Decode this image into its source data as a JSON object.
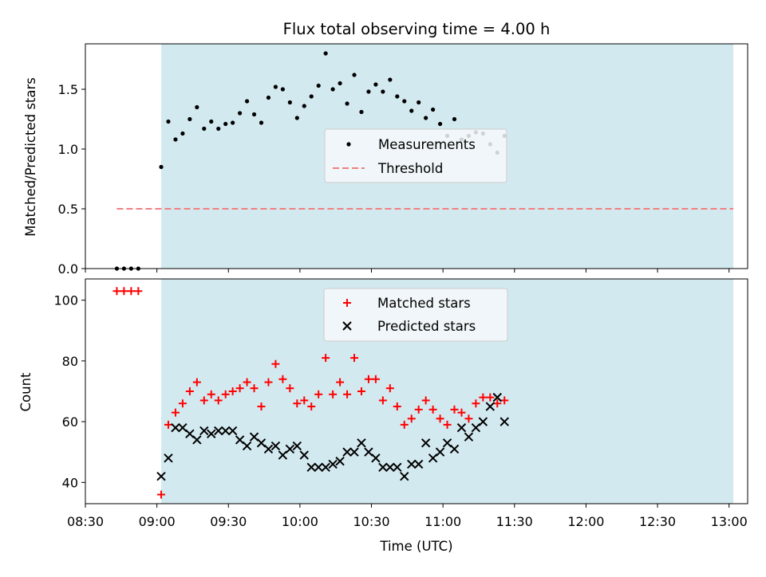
{
  "chart_data": {
    "type": "scatter",
    "title": "Flux total observing time = 4.00 h",
    "xlabel": "Time (UTC)",
    "x_tick_labels": [
      "08:30",
      "09:00",
      "09:30",
      "10:00",
      "10:30",
      "11:00",
      "11:30",
      "12:00",
      "12:30",
      "13:00"
    ],
    "x_tick_hours": [
      8.5,
      9.0,
      9.5,
      10.0,
      10.5,
      11.0,
      11.5,
      12.0,
      12.5,
      13.0
    ],
    "xlim_hours": [
      8.5,
      13.13
    ],
    "observing_window_hours": [
      9.03,
      13.03
    ],
    "colors": {
      "shade": "#d3e9f0",
      "matched": "#ff0000",
      "predicted": "#000000",
      "measurement": "#000000",
      "threshold": "#f08080"
    },
    "top_panel": {
      "ylabel": "Matched/Predicted stars",
      "ylim": [
        0,
        1.88
      ],
      "y_ticks": [
        0.0,
        0.5,
        1.0,
        1.5
      ],
      "y_tick_labels": [
        "0.0",
        "0.5",
        "1.0",
        "1.5"
      ],
      "legend": {
        "placement": "center",
        "measurements_label": "Measurements",
        "threshold_label": "Threshold"
      },
      "threshold": {
        "value": 0.5,
        "x_start_hours": 8.72,
        "x_end_hours": 13.03
      },
      "measurements": [
        {
          "t": 8.72,
          "v": 0.0
        },
        {
          "t": 8.77,
          "v": 0.0
        },
        {
          "t": 8.82,
          "v": 0.0
        },
        {
          "t": 8.87,
          "v": 0.0
        },
        {
          "t": 9.03,
          "v": 0.85
        },
        {
          "t": 9.08,
          "v": 1.23
        },
        {
          "t": 9.13,
          "v": 1.08
        },
        {
          "t": 9.18,
          "v": 1.13
        },
        {
          "t": 9.23,
          "v": 1.25
        },
        {
          "t": 9.28,
          "v": 1.35
        },
        {
          "t": 9.33,
          "v": 1.17
        },
        {
          "t": 9.38,
          "v": 1.23
        },
        {
          "t": 9.43,
          "v": 1.17
        },
        {
          "t": 9.48,
          "v": 1.21
        },
        {
          "t": 9.53,
          "v": 1.22
        },
        {
          "t": 9.58,
          "v": 1.3
        },
        {
          "t": 9.63,
          "v": 1.4
        },
        {
          "t": 9.68,
          "v": 1.29
        },
        {
          "t": 9.73,
          "v": 1.22
        },
        {
          "t": 9.78,
          "v": 1.43
        },
        {
          "t": 9.83,
          "v": 1.52
        },
        {
          "t": 9.88,
          "v": 1.5
        },
        {
          "t": 9.93,
          "v": 1.39
        },
        {
          "t": 9.98,
          "v": 1.26
        },
        {
          "t": 10.03,
          "v": 1.36
        },
        {
          "t": 10.08,
          "v": 1.44
        },
        {
          "t": 10.13,
          "v": 1.53
        },
        {
          "t": 10.18,
          "v": 1.8
        },
        {
          "t": 10.23,
          "v": 1.5
        },
        {
          "t": 10.28,
          "v": 1.55
        },
        {
          "t": 10.33,
          "v": 1.38
        },
        {
          "t": 10.38,
          "v": 1.62
        },
        {
          "t": 10.43,
          "v": 1.31
        },
        {
          "t": 10.48,
          "v": 1.48
        },
        {
          "t": 10.53,
          "v": 1.54
        },
        {
          "t": 10.58,
          "v": 1.48
        },
        {
          "t": 10.63,
          "v": 1.58
        },
        {
          "t": 10.68,
          "v": 1.44
        },
        {
          "t": 10.73,
          "v": 1.4
        },
        {
          "t": 10.78,
          "v": 1.32
        },
        {
          "t": 10.83,
          "v": 1.39
        },
        {
          "t": 10.88,
          "v": 1.26
        },
        {
          "t": 10.93,
          "v": 1.33
        },
        {
          "t": 10.98,
          "v": 1.21
        },
        {
          "t": 11.03,
          "v": 1.11
        },
        {
          "t": 11.08,
          "v": 1.25
        },
        {
          "t": 11.13,
          "v": 1.08
        },
        {
          "t": 11.18,
          "v": 1.11
        },
        {
          "t": 11.23,
          "v": 1.14
        },
        {
          "t": 11.28,
          "v": 1.13
        },
        {
          "t": 11.33,
          "v": 1.04
        },
        {
          "t": 11.38,
          "v": 0.97
        },
        {
          "t": 11.43,
          "v": 1.11
        }
      ]
    },
    "bottom_panel": {
      "ylabel": "Count",
      "ylim": [
        33,
        107
      ],
      "y_ticks": [
        40,
        60,
        80,
        100
      ],
      "y_tick_labels": [
        "40",
        "60",
        "80",
        "100"
      ],
      "legend": {
        "placement": "upper center",
        "matched_label": "Matched stars",
        "predicted_label": "Predicted stars"
      },
      "series": [
        {
          "name": "Matched stars",
          "marker": "plus",
          "points": [
            {
              "t": 8.72,
              "v": 103
            },
            {
              "t": 8.77,
              "v": 103
            },
            {
              "t": 8.82,
              "v": 103
            },
            {
              "t": 8.87,
              "v": 103
            },
            {
              "t": 9.03,
              "v": 36
            },
            {
              "t": 9.08,
              "v": 59
            },
            {
              "t": 9.13,
              "v": 63
            },
            {
              "t": 9.18,
              "v": 66
            },
            {
              "t": 9.23,
              "v": 70
            },
            {
              "t": 9.28,
              "v": 73
            },
            {
              "t": 9.33,
              "v": 67
            },
            {
              "t": 9.38,
              "v": 69
            },
            {
              "t": 9.43,
              "v": 67
            },
            {
              "t": 9.48,
              "v": 69
            },
            {
              "t": 9.53,
              "v": 70
            },
            {
              "t": 9.58,
              "v": 71
            },
            {
              "t": 9.63,
              "v": 73
            },
            {
              "t": 9.68,
              "v": 71
            },
            {
              "t": 9.73,
              "v": 65
            },
            {
              "t": 9.78,
              "v": 73
            },
            {
              "t": 9.83,
              "v": 79
            },
            {
              "t": 9.88,
              "v": 74
            },
            {
              "t": 9.93,
              "v": 71
            },
            {
              "t": 9.98,
              "v": 66
            },
            {
              "t": 10.03,
              "v": 67
            },
            {
              "t": 10.08,
              "v": 65
            },
            {
              "t": 10.13,
              "v": 69
            },
            {
              "t": 10.18,
              "v": 81
            },
            {
              "t": 10.23,
              "v": 69
            },
            {
              "t": 10.28,
              "v": 73
            },
            {
              "t": 10.33,
              "v": 69
            },
            {
              "t": 10.38,
              "v": 81
            },
            {
              "t": 10.43,
              "v": 70
            },
            {
              "t": 10.48,
              "v": 74
            },
            {
              "t": 10.53,
              "v": 74
            },
            {
              "t": 10.58,
              "v": 67
            },
            {
              "t": 10.63,
              "v": 71
            },
            {
              "t": 10.68,
              "v": 65
            },
            {
              "t": 10.73,
              "v": 59
            },
            {
              "t": 10.78,
              "v": 61
            },
            {
              "t": 10.83,
              "v": 64
            },
            {
              "t": 10.88,
              "v": 67
            },
            {
              "t": 10.93,
              "v": 64
            },
            {
              "t": 10.98,
              "v": 61
            },
            {
              "t": 11.03,
              "v": 59
            },
            {
              "t": 11.08,
              "v": 64
            },
            {
              "t": 11.13,
              "v": 63
            },
            {
              "t": 11.18,
              "v": 61
            },
            {
              "t": 11.23,
              "v": 66
            },
            {
              "t": 11.28,
              "v": 68
            },
            {
              "t": 11.33,
              "v": 68
            },
            {
              "t": 11.38,
              "v": 66
            },
            {
              "t": 11.43,
              "v": 67
            }
          ]
        },
        {
          "name": "Predicted stars",
          "marker": "x",
          "points": [
            {
              "t": 9.03,
              "v": 42
            },
            {
              "t": 9.08,
              "v": 48
            },
            {
              "t": 9.13,
              "v": 58
            },
            {
              "t": 9.18,
              "v": 58
            },
            {
              "t": 9.23,
              "v": 56
            },
            {
              "t": 9.28,
              "v": 54
            },
            {
              "t": 9.33,
              "v": 57
            },
            {
              "t": 9.38,
              "v": 56
            },
            {
              "t": 9.43,
              "v": 57
            },
            {
              "t": 9.48,
              "v": 57
            },
            {
              "t": 9.53,
              "v": 57
            },
            {
              "t": 9.58,
              "v": 54
            },
            {
              "t": 9.63,
              "v": 52
            },
            {
              "t": 9.68,
              "v": 55
            },
            {
              "t": 9.73,
              "v": 53
            },
            {
              "t": 9.78,
              "v": 51
            },
            {
              "t": 9.83,
              "v": 52
            },
            {
              "t": 9.88,
              "v": 49
            },
            {
              "t": 9.93,
              "v": 51
            },
            {
              "t": 9.98,
              "v": 52
            },
            {
              "t": 10.03,
              "v": 49
            },
            {
              "t": 10.08,
              "v": 45
            },
            {
              "t": 10.13,
              "v": 45
            },
            {
              "t": 10.18,
              "v": 45
            },
            {
              "t": 10.23,
              "v": 46
            },
            {
              "t": 10.28,
              "v": 47
            },
            {
              "t": 10.33,
              "v": 50
            },
            {
              "t": 10.38,
              "v": 50
            },
            {
              "t": 10.43,
              "v": 53
            },
            {
              "t": 10.48,
              "v": 50
            },
            {
              "t": 10.53,
              "v": 48
            },
            {
              "t": 10.58,
              "v": 45
            },
            {
              "t": 10.63,
              "v": 45
            },
            {
              "t": 10.68,
              "v": 45
            },
            {
              "t": 10.73,
              "v": 42
            },
            {
              "t": 10.78,
              "v": 46
            },
            {
              "t": 10.83,
              "v": 46
            },
            {
              "t": 10.88,
              "v": 53
            },
            {
              "t": 10.93,
              "v": 48
            },
            {
              "t": 10.98,
              "v": 50
            },
            {
              "t": 11.03,
              "v": 53
            },
            {
              "t": 11.08,
              "v": 51
            },
            {
              "t": 11.13,
              "v": 58
            },
            {
              "t": 11.18,
              "v": 55
            },
            {
              "t": 11.23,
              "v": 58
            },
            {
              "t": 11.28,
              "v": 60
            },
            {
              "t": 11.33,
              "v": 65
            },
            {
              "t": 11.38,
              "v": 68
            },
            {
              "t": 11.43,
              "v": 60
            }
          ]
        }
      ]
    }
  }
}
